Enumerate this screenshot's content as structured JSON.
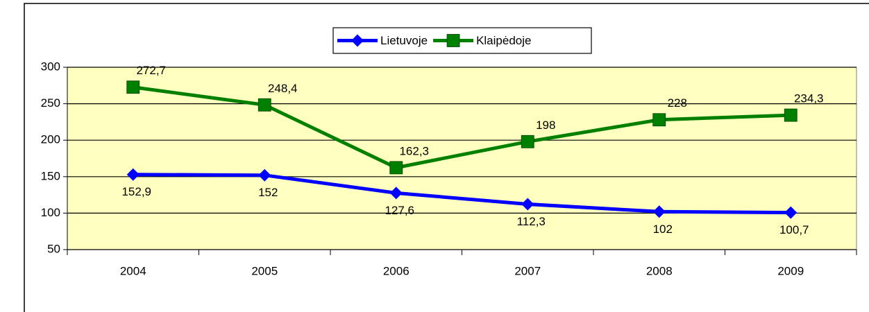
{
  "chart_data": {
    "type": "line",
    "categories": [
      "2004",
      "2005",
      "2006",
      "2007",
      "2008",
      "2009"
    ],
    "series": [
      {
        "name": "Lietuvoje",
        "color": "#0000ff",
        "values": [
          152.9,
          152,
          127.6,
          112.3,
          102,
          100.7
        ],
        "value_labels": [
          "152,9",
          "152",
          "127,6",
          "112,3",
          "102",
          "100,7"
        ]
      },
      {
        "name": "Klaipėdoje",
        "color": "#008000",
        "values": [
          272.7,
          248.4,
          162.3,
          198,
          228,
          234.3
        ],
        "value_labels": [
          "272,7",
          "248,4",
          "162,3",
          "198",
          "228",
          "234,3"
        ]
      }
    ],
    "ylim": [
      50,
      300
    ],
    "yticks": [
      50,
      100,
      150,
      200,
      250,
      300
    ],
    "grid": true,
    "legend": "top"
  }
}
